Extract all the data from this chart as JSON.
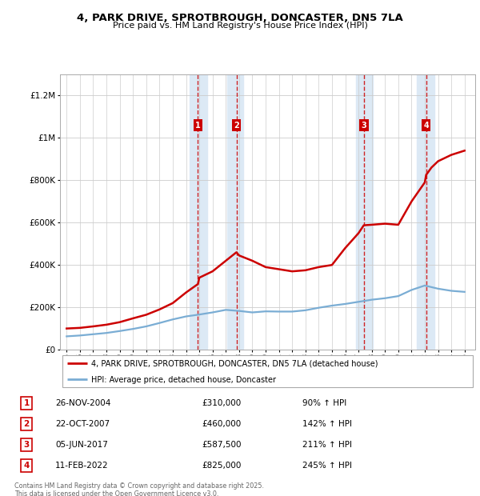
{
  "title": "4, PARK DRIVE, SPROTBROUGH, DONCASTER, DN5 7LA",
  "subtitle": "Price paid vs. HM Land Registry's House Price Index (HPI)",
  "ylim": [
    0,
    1300000
  ],
  "yticks": [
    0,
    200000,
    400000,
    600000,
    800000,
    1000000,
    1200000
  ],
  "ytick_labels": [
    "£0",
    "£200K",
    "£400K",
    "£600K",
    "£800K",
    "£1M",
    "£1.2M"
  ],
  "legend_line1": "4, PARK DRIVE, SPROTBROUGH, DONCASTER, DN5 7LA (detached house)",
  "legend_line2": "HPI: Average price, detached house, Doncaster",
  "sale_labels": [
    "1",
    "2",
    "3",
    "4"
  ],
  "sale_dates_str": [
    "26-NOV-2004",
    "22-OCT-2007",
    "05-JUN-2017",
    "11-FEB-2022"
  ],
  "sale_prices_str": [
    "£310,000",
    "£460,000",
    "£587,500",
    "£825,000"
  ],
  "sale_hpi_str": [
    "90% ↑ HPI",
    "142% ↑ HPI",
    "211% ↑ HPI",
    "245% ↑ HPI"
  ],
  "sale_years": [
    2004.9,
    2007.8,
    2017.4,
    2022.1
  ],
  "sale_prices": [
    310000,
    460000,
    587500,
    825000
  ],
  "footnote": "Contains HM Land Registry data © Crown copyright and database right 2025.\nThis data is licensed under the Open Government Licence v3.0.",
  "red_line_color": "#cc0000",
  "blue_line_color": "#7aadd4",
  "shade_color": "#dce9f5",
  "grid_color": "#cccccc",
  "sale_box_color": "#cc0000",
  "dashed_line_color": "#cc0000",
  "xlim": [
    1994.5,
    2025.8
  ],
  "shade_pairs": [
    [
      2004.3,
      2005.6
    ],
    [
      2007.1,
      2008.3
    ],
    [
      2016.8,
      2018.1
    ],
    [
      2021.4,
      2022.7
    ]
  ],
  "hpi_line": {
    "years": [
      1995,
      1996,
      1997,
      1998,
      1999,
      2000,
      2001,
      2002,
      2003,
      2004,
      2005,
      2006,
      2007,
      2008,
      2009,
      2010,
      2011,
      2012,
      2013,
      2014,
      2015,
      2016,
      2017,
      2018,
      2019,
      2020,
      2021,
      2022,
      2023,
      2024,
      2025
    ],
    "values": [
      63000,
      67000,
      73000,
      79000,
      88000,
      98000,
      110000,
      126000,
      143000,
      157000,
      166000,
      176000,
      188000,
      183000,
      176000,
      181000,
      180000,
      180000,
      186000,
      198000,
      208000,
      216000,
      226000,
      236000,
      243000,
      253000,
      282000,
      303000,
      288000,
      278000,
      273000
    ]
  },
  "property_line": {
    "years": [
      1995,
      1996,
      1997,
      1998,
      1999,
      2000,
      2001,
      2002,
      2003,
      2004.0,
      2004.9,
      2005,
      2006,
      2007.0,
      2007.8,
      2008,
      2009,
      2010,
      2011,
      2012,
      2013,
      2014,
      2015,
      2016,
      2017.0,
      2017.4,
      2018,
      2019,
      2020,
      2021,
      2022.0,
      2022.1,
      2022.5,
      2023,
      2024,
      2025
    ],
    "values": [
      100000,
      103000,
      110000,
      118000,
      130000,
      148000,
      165000,
      190000,
      220000,
      270000,
      310000,
      340000,
      370000,
      420000,
      460000,
      445000,
      420000,
      390000,
      380000,
      370000,
      375000,
      390000,
      400000,
      480000,
      550000,
      587500,
      590000,
      595000,
      590000,
      700000,
      790000,
      825000,
      860000,
      890000,
      920000,
      940000
    ]
  }
}
